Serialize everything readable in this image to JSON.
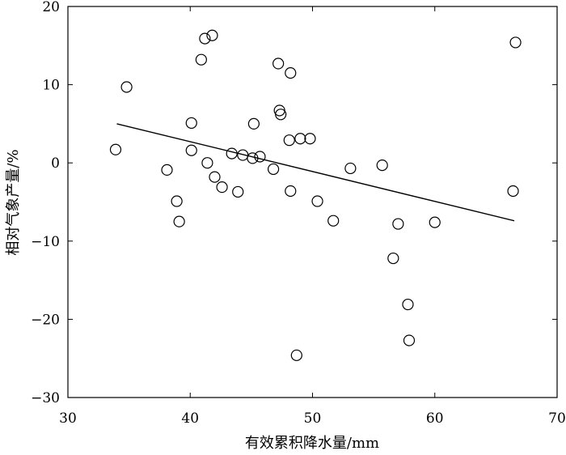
{
  "chart_data": {
    "type": "scatter",
    "xlabel": "有效累积降水量/mm",
    "ylabel": "相对气象产量/%",
    "xlim": [
      30,
      70
    ],
    "ylim": [
      -30,
      20
    ],
    "x_ticks": [
      30,
      40,
      50,
      60,
      70
    ],
    "y_ticks": [
      -30,
      -20,
      -10,
      0,
      10,
      20
    ],
    "x_tick_labels": [
      "30",
      "40",
      "50",
      "60",
      "70"
    ],
    "y_tick_labels": [
      "−30",
      "−20",
      "−10",
      "0",
      "10",
      "20"
    ],
    "grid": false,
    "points": [
      {
        "x": 33.9,
        "y": 1.7
      },
      {
        "x": 34.8,
        "y": 9.7
      },
      {
        "x": 38.1,
        "y": -0.9
      },
      {
        "x": 38.9,
        "y": -4.9
      },
      {
        "x": 39.1,
        "y": -7.5
      },
      {
        "x": 40.1,
        "y": 5.1
      },
      {
        "x": 40.1,
        "y": 1.6
      },
      {
        "x": 40.9,
        "y": 13.2
      },
      {
        "x": 41.2,
        "y": 15.9
      },
      {
        "x": 41.4,
        "y": 0.0
      },
      {
        "x": 41.8,
        "y": 16.3
      },
      {
        "x": 42.0,
        "y": -1.8
      },
      {
        "x": 42.6,
        "y": -3.1
      },
      {
        "x": 43.4,
        "y": 1.2
      },
      {
        "x": 43.9,
        "y": -3.7
      },
      {
        "x": 44.3,
        "y": 1.0
      },
      {
        "x": 45.1,
        "y": 0.6
      },
      {
        "x": 45.2,
        "y": 5.0
      },
      {
        "x": 45.7,
        "y": 0.8
      },
      {
        "x": 46.8,
        "y": -0.8
      },
      {
        "x": 47.2,
        "y": 12.7
      },
      {
        "x": 47.3,
        "y": 6.7
      },
      {
        "x": 47.4,
        "y": 6.2
      },
      {
        "x": 48.1,
        "y": 2.9
      },
      {
        "x": 48.2,
        "y": 11.5
      },
      {
        "x": 48.2,
        "y": -3.6
      },
      {
        "x": 48.7,
        "y": -24.6
      },
      {
        "x": 49.0,
        "y": 3.1
      },
      {
        "x": 49.8,
        "y": 3.1
      },
      {
        "x": 50.4,
        "y": -4.9
      },
      {
        "x": 51.7,
        "y": -7.4
      },
      {
        "x": 53.1,
        "y": -0.7
      },
      {
        "x": 55.7,
        "y": -0.3
      },
      {
        "x": 56.6,
        "y": -12.2
      },
      {
        "x": 57.0,
        "y": -7.8
      },
      {
        "x": 57.8,
        "y": -18.1
      },
      {
        "x": 57.9,
        "y": -22.7
      },
      {
        "x": 60.0,
        "y": -7.6
      },
      {
        "x": 66.4,
        "y": -3.6
      },
      {
        "x": 66.6,
        "y": 15.4
      }
    ],
    "trendline": [
      {
        "x": 34.0,
        "y": 5.0
      },
      {
        "x": 66.5,
        "y": -7.4
      }
    ]
  }
}
